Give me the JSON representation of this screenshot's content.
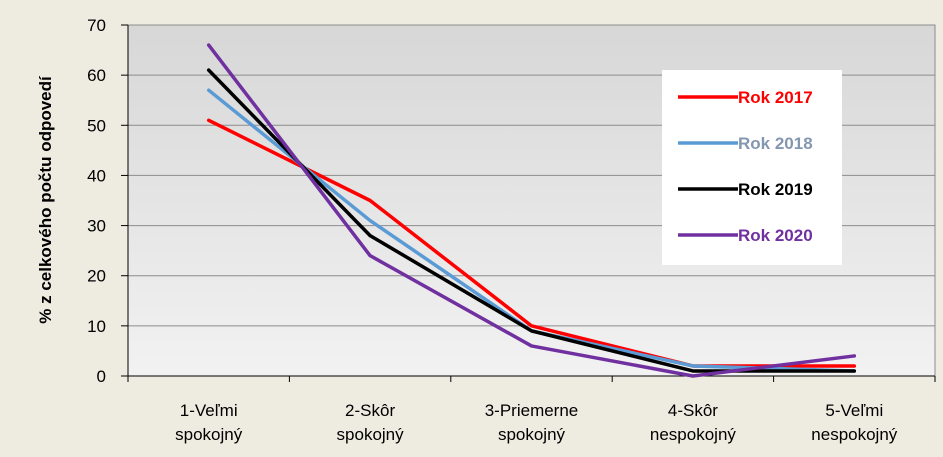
{
  "chart_data": {
    "type": "line",
    "title": "",
    "xlabel": "",
    "ylabel": "% z celkového počtu odpovedí",
    "ylim": [
      0,
      70
    ],
    "yticks": [
      0,
      10,
      20,
      30,
      40,
      50,
      60,
      70
    ],
    "categories": [
      [
        "1-Veľmi",
        "spokojný"
      ],
      [
        "2-Skôr",
        "spokojný"
      ],
      [
        "3-Priemerne",
        "spokojný"
      ],
      [
        "4-Skôr",
        "nespokojný"
      ],
      [
        "5-Veľmi",
        "nespokojný"
      ]
    ],
    "grid": true,
    "legend_position": "right",
    "series": [
      {
        "name": "Rok 2017",
        "color": "#ff0000",
        "values": [
          51,
          35,
          10,
          2,
          2
        ]
      },
      {
        "name": "Rok 2018",
        "color": "#5b9bd5",
        "text_color": "#8497b0",
        "values": [
          57,
          31,
          9,
          2,
          1
        ]
      },
      {
        "name": "Rok 2019",
        "color": "#000000",
        "values": [
          61,
          28,
          9,
          1,
          1
        ]
      },
      {
        "name": "Rok 2020",
        "color": "#7030a0",
        "values": [
          66,
          24,
          6,
          0,
          4
        ]
      }
    ]
  }
}
